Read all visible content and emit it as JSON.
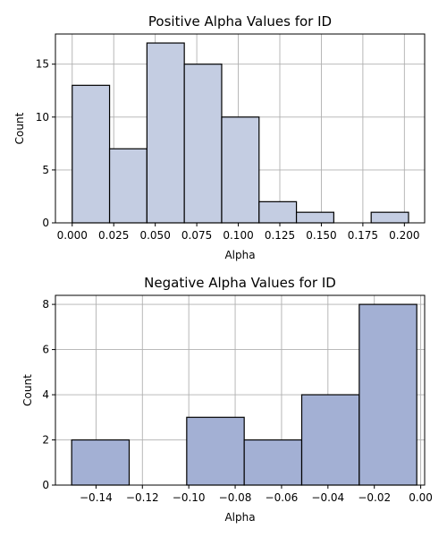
{
  "chart_data": [
    {
      "type": "bar",
      "title": "Positive Alpha Values for ID",
      "xlabel": "Alpha",
      "ylabel": "Count",
      "bar_color": "#c4cde2",
      "grid": true,
      "xlim": [
        -0.0101,
        0.2122
      ],
      "ylim": [
        0,
        17.85
      ],
      "xticks": [
        0.0,
        0.025,
        0.05,
        0.075,
        0.1,
        0.125,
        0.15,
        0.175,
        0.2
      ],
      "xtick_labels": [
        "0.000",
        "0.025",
        "0.050",
        "0.075",
        "0.100",
        "0.125",
        "0.150",
        "0.175",
        "0.200"
      ],
      "yticks": [
        0,
        5,
        10,
        15
      ],
      "ytick_labels": [
        "0",
        "5",
        "10",
        "15"
      ],
      "bins": [
        {
          "start": 0.0,
          "end": 0.0225,
          "count": 13
        },
        {
          "start": 0.0225,
          "end": 0.045,
          "count": 7
        },
        {
          "start": 0.045,
          "end": 0.0675,
          "count": 17
        },
        {
          "start": 0.0675,
          "end": 0.09,
          "count": 15
        },
        {
          "start": 0.09,
          "end": 0.1125,
          "count": 10
        },
        {
          "start": 0.1125,
          "end": 0.135,
          "count": 2
        },
        {
          "start": 0.135,
          "end": 0.1575,
          "count": 1
        },
        {
          "start": 0.1575,
          "end": 0.18,
          "count": 0
        },
        {
          "start": 0.18,
          "end": 0.2025,
          "count": 1
        }
      ]
    },
    {
      "type": "bar",
      "title": "Negative Alpha Values for ID",
      "xlabel": "Alpha",
      "ylabel": "Count",
      "bar_color": "#a3b0d4",
      "grid": true,
      "xlim": [
        -0.1575,
        0.0017
      ],
      "ylim": [
        0,
        8.4
      ],
      "xticks": [
        -0.14,
        -0.12,
        -0.1,
        -0.08,
        -0.06,
        -0.04,
        -0.02,
        0.0
      ],
      "xtick_labels": [
        "−0.14",
        "−0.12",
        "−0.10",
        "−0.08",
        "−0.06",
        "−0.04",
        "−0.02",
        "0.00"
      ],
      "yticks": [
        0,
        2,
        4,
        6,
        8
      ],
      "ytick_labels": [
        "0",
        "2",
        "4",
        "6",
        "8"
      ],
      "bins": [
        {
          "start": -0.1505,
          "end": -0.1257,
          "count": 2
        },
        {
          "start": -0.1257,
          "end": -0.1009,
          "count": 0
        },
        {
          "start": -0.1009,
          "end": -0.0761,
          "count": 3
        },
        {
          "start": -0.0761,
          "end": -0.0513,
          "count": 2
        },
        {
          "start": -0.0513,
          "end": -0.0265,
          "count": 4
        },
        {
          "start": -0.0265,
          "end": -0.0017,
          "count": 8
        }
      ]
    }
  ]
}
